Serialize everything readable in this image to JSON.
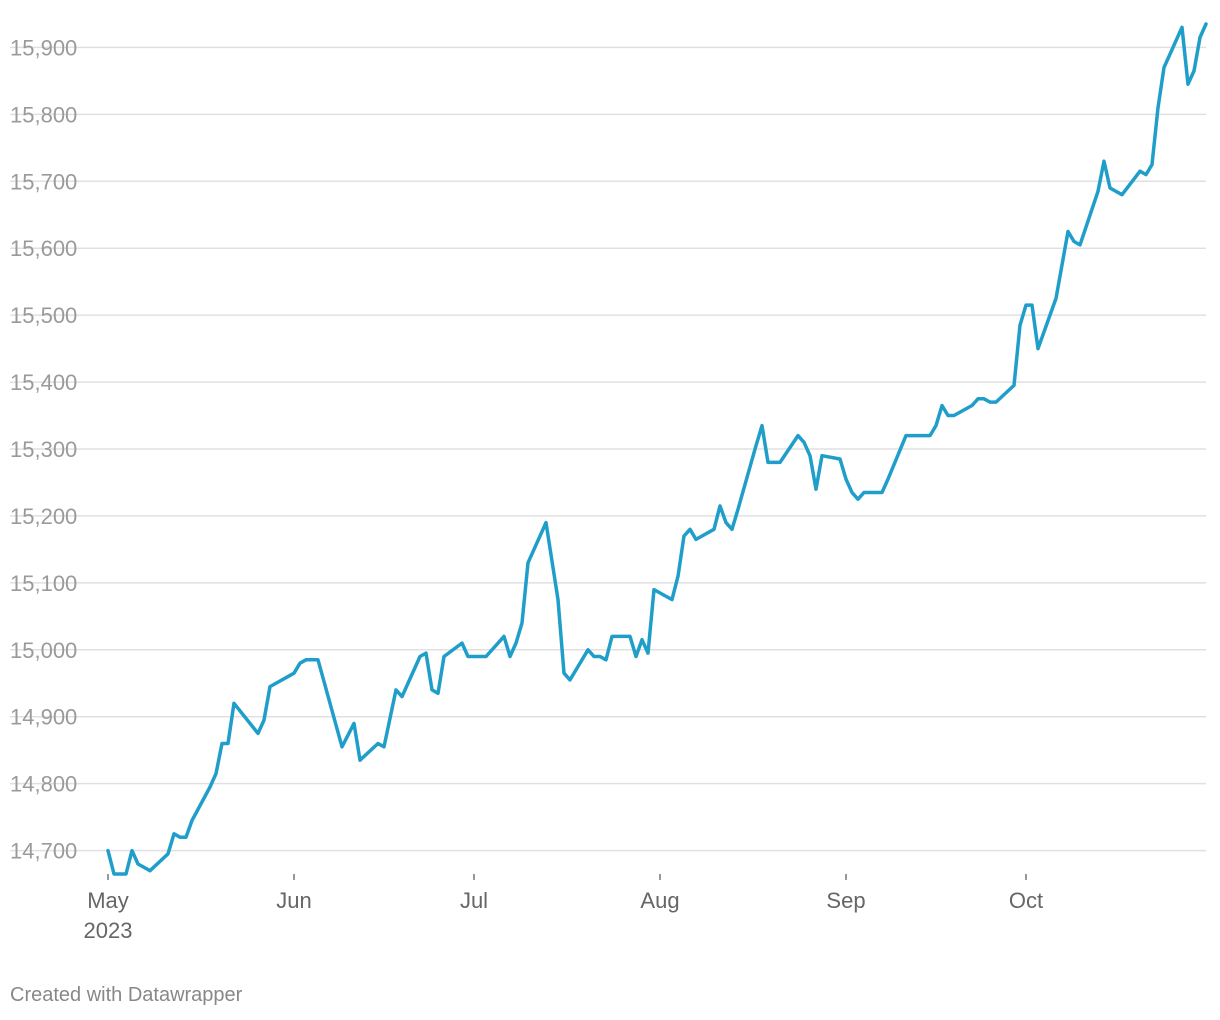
{
  "chart_data": {
    "type": "line",
    "title": "",
    "xlabel": "",
    "ylabel": "",
    "color": "#1f9ec9",
    "grid": true,
    "legend": "none",
    "ylim": [
      14665,
      15935
    ],
    "xlim": [
      "2023-04-30",
      "2023-10-31"
    ],
    "y_ticks": [
      14700,
      14800,
      14900,
      15000,
      15100,
      15200,
      15300,
      15400,
      15500,
      15600,
      15700,
      15800,
      15900
    ],
    "y_tick_labels": [
      "14,700",
      "14,800",
      "14,900",
      "15,000",
      "15,100",
      "15,200",
      "15,300",
      "15,400",
      "15,500",
      "15,600",
      "15,700",
      "15,800",
      "15,900"
    ],
    "x_ticks": [
      {
        "date": "2023-05-01",
        "label": "May",
        "sublabel": "2023"
      },
      {
        "date": "2023-06-01",
        "label": "Jun",
        "sublabel": ""
      },
      {
        "date": "2023-07-01",
        "label": "Jul",
        "sublabel": ""
      },
      {
        "date": "2023-08-01",
        "label": "Aug",
        "sublabel": ""
      },
      {
        "date": "2023-09-01",
        "label": "Sep",
        "sublabel": ""
      },
      {
        "date": "2023-10-01",
        "label": "Oct",
        "sublabel": ""
      }
    ],
    "series": [
      {
        "points": [
          [
            "2023-05-01",
            14700
          ],
          [
            "2023-05-02",
            14665
          ],
          [
            "2023-05-03",
            14665
          ],
          [
            "2023-05-04",
            14665
          ],
          [
            "2023-05-05",
            14700
          ],
          [
            "2023-05-06",
            14680
          ],
          [
            "2023-05-08",
            14670
          ],
          [
            "2023-05-11",
            14695
          ],
          [
            "2023-05-12",
            14725
          ],
          [
            "2023-05-13",
            14720
          ],
          [
            "2023-05-14",
            14720
          ],
          [
            "2023-05-15",
            14745
          ],
          [
            "2023-05-18",
            14795
          ],
          [
            "2023-05-19",
            14815
          ],
          [
            "2023-05-20",
            14860
          ],
          [
            "2023-05-21",
            14860
          ],
          [
            "2023-05-22",
            14920
          ],
          [
            "2023-05-26",
            14875
          ],
          [
            "2023-05-27",
            14895
          ],
          [
            "2023-05-28",
            14945
          ],
          [
            "2023-06-01",
            14965
          ],
          [
            "2023-06-02",
            14980
          ],
          [
            "2023-06-03",
            14985
          ],
          [
            "2023-06-05",
            14985
          ],
          [
            "2023-06-09",
            14855
          ],
          [
            "2023-06-11",
            14890
          ],
          [
            "2023-06-12",
            14835
          ],
          [
            "2023-06-15",
            14860
          ],
          [
            "2023-06-16",
            14855
          ],
          [
            "2023-06-18",
            14940
          ],
          [
            "2023-06-19",
            14930
          ],
          [
            "2023-06-22",
            14990
          ],
          [
            "2023-06-23",
            14995
          ],
          [
            "2023-06-24",
            14940
          ],
          [
            "2023-06-25",
            14935
          ],
          [
            "2023-06-26",
            14990
          ],
          [
            "2023-06-29",
            15010
          ],
          [
            "2023-06-30",
            14990
          ],
          [
            "2023-07-03",
            14990
          ],
          [
            "2023-07-06",
            15020
          ],
          [
            "2023-07-07",
            14990
          ],
          [
            "2023-07-08",
            15010
          ],
          [
            "2023-07-09",
            15040
          ],
          [
            "2023-07-10",
            15130
          ],
          [
            "2023-07-13",
            15190
          ],
          [
            "2023-07-15",
            15075
          ],
          [
            "2023-07-16",
            14965
          ],
          [
            "2023-07-17",
            14955
          ],
          [
            "2023-07-20",
            15000
          ],
          [
            "2023-07-21",
            14990
          ],
          [
            "2023-07-22",
            14990
          ],
          [
            "2023-07-23",
            14985
          ],
          [
            "2023-07-24",
            15020
          ],
          [
            "2023-07-27",
            15020
          ],
          [
            "2023-07-28",
            14990
          ],
          [
            "2023-07-29",
            15015
          ],
          [
            "2023-07-30",
            14995
          ],
          [
            "2023-07-31",
            15090
          ],
          [
            "2023-08-03",
            15075
          ],
          [
            "2023-08-04",
            15110
          ],
          [
            "2023-08-05",
            15170
          ],
          [
            "2023-08-06",
            15180
          ],
          [
            "2023-08-07",
            15165
          ],
          [
            "2023-08-10",
            15180
          ],
          [
            "2023-08-11",
            15215
          ],
          [
            "2023-08-12",
            15190
          ],
          [
            "2023-08-13",
            15180
          ],
          [
            "2023-08-14",
            15210
          ],
          [
            "2023-08-17",
            15305
          ],
          [
            "2023-08-18",
            15335
          ],
          [
            "2023-08-19",
            15280
          ],
          [
            "2023-08-21",
            15280
          ],
          [
            "2023-08-24",
            15320
          ],
          [
            "2023-08-25",
            15310
          ],
          [
            "2023-08-26",
            15290
          ],
          [
            "2023-08-27",
            15240
          ],
          [
            "2023-08-28",
            15290
          ],
          [
            "2023-08-31",
            15285
          ],
          [
            "2023-09-01",
            15255
          ],
          [
            "2023-09-02",
            15235
          ],
          [
            "2023-09-03",
            15225
          ],
          [
            "2023-09-04",
            15235
          ],
          [
            "2023-09-07",
            15235
          ],
          [
            "2023-09-08",
            15255
          ],
          [
            "2023-09-11",
            15320
          ],
          [
            "2023-09-15",
            15320
          ],
          [
            "2023-09-16",
            15335
          ],
          [
            "2023-09-17",
            15365
          ],
          [
            "2023-09-18",
            15350
          ],
          [
            "2023-09-19",
            15350
          ],
          [
            "2023-09-22",
            15365
          ],
          [
            "2023-09-23",
            15375
          ],
          [
            "2023-09-24",
            15375
          ],
          [
            "2023-09-25",
            15370
          ],
          [
            "2023-09-26",
            15370
          ],
          [
            "2023-09-29",
            15395
          ],
          [
            "2023-09-30",
            15485
          ],
          [
            "2023-10-01",
            15515
          ],
          [
            "2023-10-02",
            15515
          ],
          [
            "2023-10-03",
            15450
          ],
          [
            "2023-10-06",
            15525
          ],
          [
            "2023-10-08",
            15625
          ],
          [
            "2023-10-09",
            15610
          ],
          [
            "2023-10-10",
            15605
          ],
          [
            "2023-10-13",
            15685
          ],
          [
            "2023-10-14",
            15730
          ],
          [
            "2023-10-15",
            15690
          ],
          [
            "2023-10-17",
            15680
          ],
          [
            "2023-10-20",
            15715
          ],
          [
            "2023-10-21",
            15710
          ],
          [
            "2023-10-22",
            15725
          ],
          [
            "2023-10-23",
            15810
          ],
          [
            "2023-10-24",
            15870
          ],
          [
            "2023-10-27",
            15930
          ],
          [
            "2023-10-28",
            15845
          ],
          [
            "2023-10-29",
            15865
          ],
          [
            "2023-10-30",
            15915
          ],
          [
            "2023-10-31",
            15935
          ]
        ]
      }
    ]
  },
  "footer": {
    "credit": "Created with Datawrapper"
  }
}
